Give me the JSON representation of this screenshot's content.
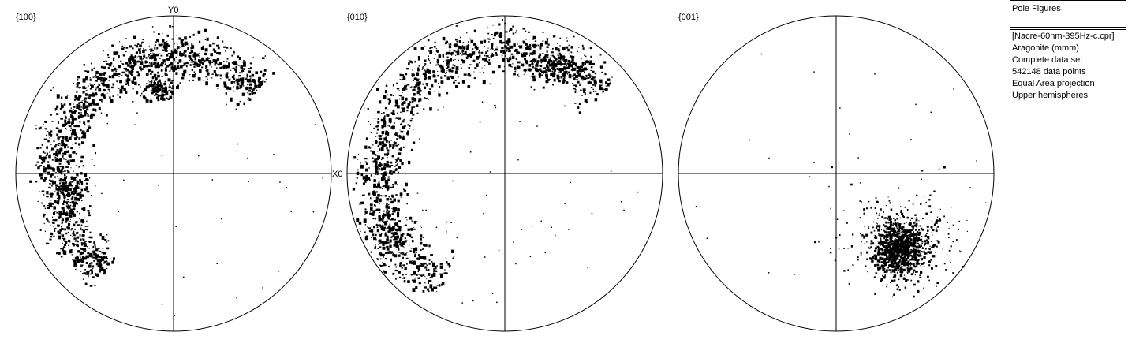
{
  "panel_title": "Pole Figures",
  "info": {
    "file": "[Nacre-60nm-395Hz-c.cpr]",
    "phase": "Aragonite (mmm)",
    "dataset": "Complete data set",
    "points": "542148 data points",
    "projection": "Equal Area projection",
    "hemisphere": "Upper hemispheres"
  },
  "axes": {
    "y_label": "Y0",
    "x_label": "X0"
  },
  "figures": [
    {
      "label": "{100}"
    },
    {
      "label": "{010}"
    },
    {
      "label": "{001}"
    }
  ],
  "colors": {
    "background": "#ffffff",
    "points": "#000000",
    "lines": "#000000"
  }
}
